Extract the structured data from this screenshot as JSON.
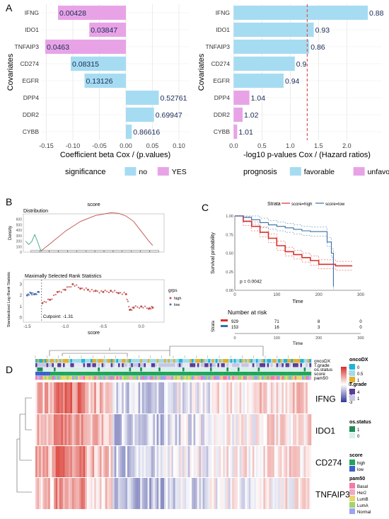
{
  "panels": {
    "A": "A",
    "B": "B",
    "C": "C",
    "D": "D"
  },
  "chart_data": [
    {
      "id": "A-left",
      "type": "bar",
      "orientation": "horizontal",
      "ylabel": "Covariates",
      "xlabel": "Coefficient beta Cox / (p.values)",
      "xlim": [
        -0.16,
        0.12
      ],
      "xticks": [
        "-0.15",
        "-0.10",
        "-0.05",
        "0.00",
        "0.05",
        "0.10"
      ],
      "xtick_values": [
        -0.15,
        -0.1,
        -0.05,
        0.0,
        0.05,
        0.1
      ],
      "categories": [
        "IFNG",
        "IDO1",
        "TNFAIP3",
        "CD274",
        "EGFR",
        "DPP4",
        "DDR2",
        "CYBB"
      ],
      "values": [
        -0.128,
        -0.069,
        -0.152,
        -0.104,
        -0.078,
        0.062,
        0.053,
        0.011
      ],
      "labels": [
        "0.00428",
        "0.03847",
        "0.0463",
        "0.08315",
        "0.13126",
        "0.52761",
        "0.69947",
        "0.86616"
      ],
      "group": [
        "YES",
        "YES",
        "YES",
        "no",
        "no",
        "no",
        "no",
        "no"
      ],
      "legend": {
        "title": "significance",
        "items": [
          "no",
          "YES"
        ]
      },
      "colors": {
        "no": "#a6dcf2",
        "YES": "#e8a3e6"
      }
    },
    {
      "id": "A-right",
      "type": "bar",
      "orientation": "horizontal",
      "ylabel": "Covariates",
      "xlabel": "-log10 p-values Cox / (Hazard ratios)",
      "xlim": [
        -0.03,
        2.62
      ],
      "xticks": [
        "0.0",
        "0.5",
        "1.0",
        "1.5",
        "2.0"
      ],
      "xtick_values": [
        0.0,
        0.5,
        1.0,
        1.5,
        2.0
      ],
      "threshold": 1.3,
      "categories": [
        "IFNG",
        "IDO1",
        "TNFAIP3",
        "CD274",
        "EGFR",
        "DPP4",
        "DDR2",
        "CYBB"
      ],
      "values": [
        2.37,
        1.415,
        1.335,
        1.08,
        0.882,
        0.278,
        0.158,
        0.062
      ],
      "labels": [
        "0.88",
        "0.93",
        "0.86",
        "0.9",
        "0.94",
        "1.04",
        "1.02",
        "1.01"
      ],
      "group": [
        "favorable",
        "favorable",
        "favorable",
        "favorable",
        "favorable",
        "unfavorable",
        "unfavorable",
        "unfavorable"
      ],
      "legend": {
        "title": "prognosis",
        "items": [
          "favorable",
          "unfavorable"
        ]
      },
      "colors": {
        "favorable": "#a6dcf2",
        "unfavorable": "#e8a3e6",
        "threshold": "#d9534f"
      }
    },
    {
      "id": "B-density",
      "type": "line",
      "title": "score",
      "subtitle": "Distribution",
      "ylabel": "Density",
      "xlim": [
        -1.55,
        0.3
      ],
      "ylim": [
        0,
        700
      ],
      "yticks": [
        "0",
        "100",
        "200",
        "300",
        "400",
        "500",
        "600"
      ],
      "ytick_values": [
        0,
        100,
        200,
        300,
        400,
        500,
        600
      ],
      "series": [
        {
          "name": "high",
          "color": "#c0504d",
          "x": [
            -1.31,
            -1.2,
            -1.0,
            -0.8,
            -0.6,
            -0.4,
            -0.3,
            -0.2,
            -0.1,
            0.0,
            0.1,
            0.15
          ],
          "y": [
            30,
            150,
            380,
            560,
            670,
            720,
            710,
            660,
            560,
            380,
            200,
            120
          ]
        },
        {
          "name": "low",
          "color": "#3fa58f",
          "x": [
            -1.52,
            -1.48,
            -1.44,
            -1.4,
            -1.36,
            -1.33,
            -1.31
          ],
          "y": [
            200,
            140,
            190,
            320,
            180,
            60,
            10
          ]
        }
      ]
    },
    {
      "id": "B-msrs",
      "type": "scatter",
      "title": "Maximally Selected Rank Statistics",
      "xlabel": "score",
      "ylabel": "Standardized Log-Rank Statistic",
      "xlim": [
        -1.55,
        0.3
      ],
      "ylim": [
        -0.4,
        3.4
      ],
      "xticks": [
        "-1.5",
        "-1.0",
        "-0.5",
        "0.0"
      ],
      "xtick_values": [
        -1.5,
        -1.0,
        -0.5,
        0.0
      ],
      "yticks": [
        "0",
        "1",
        "2",
        "3"
      ],
      "ytick_values": [
        0,
        1,
        2,
        3
      ],
      "cutpoint": -1.31,
      "cutpoint_label": "Cutpoint: -1.31",
      "legend": {
        "title": "grps",
        "items": [
          "high",
          "low"
        ]
      },
      "series": [
        {
          "name": "low",
          "color": "#4a6fb5",
          "x": [
            -1.5,
            -1.45,
            -1.4,
            -1.35
          ],
          "y": [
            2.0,
            2.2,
            2.1,
            2.3
          ]
        },
        {
          "name": "high",
          "color": "#c0504d",
          "x": [
            -1.3,
            -1.2,
            -1.1,
            -1.0,
            -0.9,
            -0.8,
            -0.7,
            -0.6,
            -0.5,
            -0.4,
            -0.3,
            -0.2,
            -0.15,
            -0.1,
            0.0,
            0.1,
            0.15
          ],
          "y": [
            1.3,
            1.6,
            2.3,
            2.5,
            3.0,
            2.6,
            2.5,
            2.4,
            2.3,
            2.4,
            2.2,
            2.1,
            0.7,
            0.9,
            1.0,
            0.8,
            0.9
          ]
        }
      ]
    },
    {
      "id": "C-km",
      "type": "line",
      "legend": {
        "title": "Strata",
        "items": [
          "score=high",
          "score=low"
        ]
      },
      "xlabel": "Time",
      "ylabel": "Survival probability",
      "xlim": [
        0,
        300
      ],
      "ylim": [
        0,
        1.0
      ],
      "xticks": [
        "0",
        "100",
        "200",
        "300"
      ],
      "xtick_values": [
        0,
        100,
        200,
        300
      ],
      "yticks": [
        "0.00",
        "0.25",
        "0.50",
        "0.75",
        "1.00"
      ],
      "ytick_values": [
        0,
        0.25,
        0.5,
        0.75,
        1.0
      ],
      "pvalue": "p = 0.0042",
      "series": [
        {
          "name": "score=high",
          "color": "#d9302c",
          "x": [
            0,
            20,
            40,
            60,
            80,
            100,
            120,
            140,
            160,
            180,
            200,
            220,
            240,
            260,
            280
          ],
          "y": [
            1.0,
            0.93,
            0.86,
            0.78,
            0.7,
            0.6,
            0.52,
            0.48,
            0.44,
            0.4,
            0.35,
            0.35,
            0.33,
            0.33,
            0.33
          ]
        },
        {
          "name": "score=low",
          "color": "#3a6ea5",
          "x": [
            0,
            20,
            40,
            60,
            80,
            100,
            120,
            140,
            160,
            180,
            200,
            220,
            230,
            235
          ],
          "y": [
            1.0,
            0.98,
            0.95,
            0.91,
            0.88,
            0.86,
            0.84,
            0.82,
            0.8,
            0.79,
            0.79,
            0.65,
            0.5,
            0.05
          ]
        }
      ],
      "risk_table": {
        "title": "Number at risk",
        "row_label": "Strata",
        "times": [
          0,
          100,
          200,
          300
        ],
        "rows": [
          {
            "name": "score=high",
            "color": "#d9302c",
            "counts": [
              "929",
              "71",
              "8",
              "0"
            ]
          },
          {
            "name": "score=low",
            "color": "#3a6ea5",
            "counts": [
              "153",
              "16",
              "3",
              "0"
            ]
          }
        ],
        "xlabel": "Time"
      }
    },
    {
      "id": "D-heatmap",
      "type": "heatmap",
      "rows": [
        "IFNG",
        "IDO1",
        "CD274",
        "TNFAIP3"
      ],
      "annotation_tracks": [
        "oncoDX",
        "T.grade",
        "os.status",
        "score",
        "pam50"
      ],
      "color_scale": {
        "ticks": [
          "3",
          "2",
          "1",
          "0",
          "-1",
          "-2",
          "-3"
        ],
        "tick_values": [
          3,
          2,
          1,
          0,
          -1,
          -2,
          -3
        ],
        "high": "#d73027",
        "mid": "#ffffff",
        "low": "#313695"
      },
      "legends": [
        {
          "title": "oncoDX",
          "items": [
            "0",
            "0.5",
            "1"
          ],
          "colors": [
            "#1fb4d6",
            "#a0dbe8",
            "#e0b030"
          ]
        },
        {
          "title": "T.grade",
          "items": [
            "4",
            "1"
          ],
          "colors": [
            "#5a3c99",
            "#c6c6e6"
          ]
        },
        {
          "title": "os.status",
          "items": [
            "1",
            "0"
          ],
          "colors": [
            "#1f8a5a",
            "#d8f0e8"
          ]
        },
        {
          "title": "score",
          "items": [
            "high",
            "low"
          ],
          "colors": [
            "#21a55b",
            "#3a62c8"
          ]
        },
        {
          "title": "pam50",
          "items": [
            "Basal",
            "Her2",
            "LumB",
            "LumA",
            "Normal"
          ],
          "colors": [
            "#f47aa8",
            "#f2a6c8",
            "#e8d66a",
            "#a2d46e",
            "#9aa4f0"
          ]
        }
      ]
    }
  ]
}
